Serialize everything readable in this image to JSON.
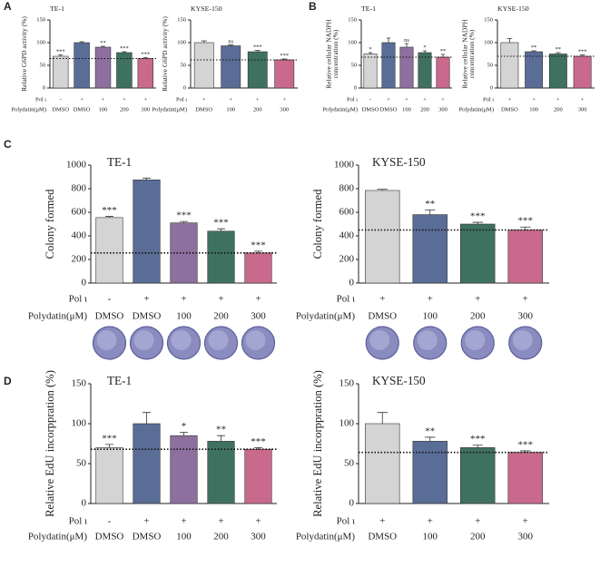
{
  "chart_data": [
    {
      "type": "bar",
      "panel": "A",
      "title": "TE-1",
      "ylabel": "Relative G6PD activity (%)",
      "ylim": [
        0,
        150
      ],
      "yticks": [
        0,
        50,
        100,
        150
      ],
      "row_labels": [
        "Pol ι",
        "Polydatin(μM)"
      ],
      "pol": [
        "-",
        "+",
        "+",
        "+",
        "+"
      ],
      "categories": [
        "DMSO",
        "DMSO",
        "100",
        "200",
        "300"
      ],
      "values": [
        70,
        100,
        90,
        78,
        65
      ],
      "errors": [
        3,
        2,
        2,
        2,
        2
      ],
      "annotations": [
        "***",
        null,
        "**",
        "***",
        "***"
      ],
      "colors": [
        "#d4d4d4",
        "#5a6d96",
        "#8d709f",
        "#3f7160",
        "#c96a8d"
      ],
      "ref_line": 65
    },
    {
      "type": "bar",
      "title": "KYSE-150",
      "ylabel": "Relative G6PD activity (%)",
      "ylim": [
        0,
        150
      ],
      "yticks": [
        0,
        50,
        100,
        150
      ],
      "row_labels": [
        "Pol ι",
        "Polydatin(μM)"
      ],
      "pol": [
        "+",
        "+",
        "+",
        "+"
      ],
      "categories": [
        "DMSO",
        "100",
        "200",
        "300"
      ],
      "values": [
        100,
        93,
        80,
        62
      ],
      "errors": [
        4,
        2,
        3,
        2
      ],
      "annotations": [
        null,
        "ns",
        "***",
        "***"
      ],
      "colors": [
        "#d4d4d4",
        "#5a6d96",
        "#3f7160",
        "#c96a8d"
      ],
      "ref_line": 62
    },
    {
      "type": "bar",
      "panel": "B",
      "title": "TE-1",
      "ylabel": [
        "Relative cellular NADPH",
        "concentration (%)"
      ],
      "ylim": [
        0,
        150
      ],
      "yticks": [
        0,
        50,
        100,
        150
      ],
      "row_labels": [
        "Pol ι",
        "Polydatin(μM)"
      ],
      "pol": [
        "-",
        "+",
        "+",
        "+",
        "+"
      ],
      "categories": [
        "DMSO",
        "DMSO",
        "100",
        "200",
        "300"
      ],
      "values": [
        75,
        100,
        90,
        78,
        68
      ],
      "errors": [
        3,
        10,
        8,
        4,
        6
      ],
      "annotations": [
        "*",
        null,
        "ns",
        "*",
        "**"
      ],
      "colors": [
        "#d4d4d4",
        "#5a6d96",
        "#8d709f",
        "#3f7160",
        "#c96a8d"
      ],
      "ref_line": 68
    },
    {
      "type": "bar",
      "title": "KYSE-150",
      "ylabel": [
        "Relative cellular NADPH",
        "concentration (%)"
      ],
      "ylim": [
        0,
        150
      ],
      "yticks": [
        0,
        50,
        100,
        150
      ],
      "row_labels": [
        "Pol ι",
        "Polydatin(μM)"
      ],
      "pol": [
        "+",
        "+",
        "+",
        "+"
      ],
      "categories": [
        "DMSO",
        "100",
        "200",
        "300"
      ],
      "values": [
        100,
        80,
        75,
        70
      ],
      "errors": [
        9,
        2,
        3,
        3
      ],
      "annotations": [
        null,
        "**",
        "**",
        "***"
      ],
      "colors": [
        "#d4d4d4",
        "#5a6d96",
        "#3f7160",
        "#c96a8d"
      ],
      "ref_line": 70
    },
    {
      "type": "bar",
      "panel": "C",
      "title": "TE-1",
      "ylabel": "Colony formed",
      "ylim": [
        0,
        1000
      ],
      "yticks": [
        0,
        200,
        400,
        600,
        800,
        1000
      ],
      "row_labels": [
        "Pol ι",
        "Polydatin(μM)"
      ],
      "pol": [
        "-",
        "+",
        "+",
        "+",
        "+"
      ],
      "categories": [
        "DMSO",
        "DMSO",
        "100",
        "200",
        "300"
      ],
      "values": [
        555,
        875,
        510,
        440,
        255
      ],
      "errors": [
        10,
        15,
        12,
        20,
        15
      ],
      "annotations": [
        "***",
        null,
        "***",
        "***",
        "***"
      ],
      "colors": [
        "#d4d4d4",
        "#5a6d96",
        "#8d709f",
        "#3f7160",
        "#c96a8d"
      ],
      "ref_line": 255
    },
    {
      "type": "bar",
      "title": "KYSE-150",
      "ylabel": "Colony formed",
      "ylim": [
        0,
        1000
      ],
      "yticks": [
        0,
        200,
        400,
        600,
        800,
        1000
      ],
      "row_labels": [
        "Pol ι",
        "Polydatin(μM)"
      ],
      "pol": [
        "+",
        "+",
        "+",
        "+"
      ],
      "categories": [
        "DMSO",
        "100",
        "200",
        "300"
      ],
      "values": [
        785,
        580,
        500,
        450
      ],
      "errors": [
        10,
        40,
        15,
        25
      ],
      "annotations": [
        null,
        "**",
        "***",
        "***"
      ],
      "colors": [
        "#d4d4d4",
        "#5a6d96",
        "#3f7160",
        "#c96a8d"
      ],
      "ref_line": 450
    },
    {
      "type": "bar",
      "panel": "D",
      "title": "TE-1",
      "ylabel": "Relative EdU incorppration (%)",
      "ylim": [
        0,
        150
      ],
      "yticks": [
        0,
        50,
        100,
        150
      ],
      "row_labels": [
        "Pol ι",
        "Polydatin(μM)"
      ],
      "pol": [
        "-",
        "+",
        "+",
        "+",
        "+"
      ],
      "categories": [
        "DMSO",
        "DMSO",
        "100",
        "200",
        "300"
      ],
      "values": [
        70,
        100,
        85,
        78,
        68
      ],
      "errors": [
        4,
        14,
        4,
        7,
        2
      ],
      "annotations": [
        "***",
        null,
        "*",
        "**",
        "***"
      ],
      "colors": [
        "#d4d4d4",
        "#5a6d96",
        "#8d709f",
        "#3f7160",
        "#c96a8d"
      ],
      "ref_line": 68
    },
    {
      "type": "bar",
      "title": "KYSE-150",
      "ylabel": "Relative EdU incorppration (%)",
      "ylim": [
        0,
        150
      ],
      "yticks": [
        0,
        50,
        100,
        150
      ],
      "row_labels": [
        "Pol ι",
        "Polydatin(μM)"
      ],
      "pol": [
        "+",
        "+",
        "+",
        "+"
      ],
      "categories": [
        "DMSO",
        "100",
        "200",
        "300"
      ],
      "values": [
        100,
        78,
        70,
        64
      ],
      "errors": [
        14,
        5,
        3,
        2
      ],
      "annotations": [
        null,
        "**",
        "***",
        "***"
      ],
      "colors": [
        "#d4d4d4",
        "#5a6d96",
        "#3f7160",
        "#c96a8d"
      ],
      "ref_line": 64
    }
  ]
}
